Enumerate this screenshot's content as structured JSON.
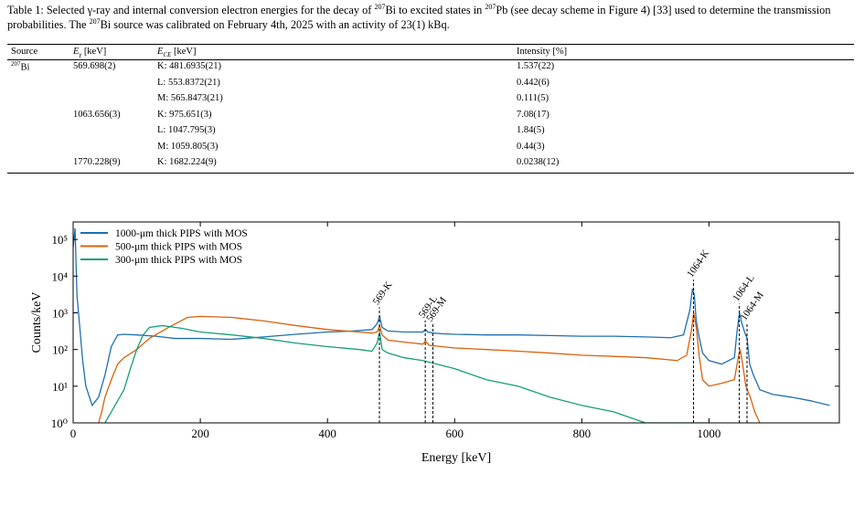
{
  "table": {
    "caption": [
      "Table 1: Selected γ-ray and internal conversion electron energies for the decay of ",
      "207",
      "Bi to excited states in ",
      "207",
      "Pb (see decay scheme in Figure 4) [33] used to determine the transmission probabilities. The ",
      "207",
      "Bi source was calibrated on February 4th, 2025 with an activity of 23(1) kBq."
    ],
    "header": [
      {
        "text": "Source"
      },
      {
        "text": "E",
        "sub": "γ",
        "unit": "[keV]"
      },
      {
        "text": "E",
        "sub": "CE",
        "unit": "[keV]"
      },
      {
        "text": "Intensity [%]"
      }
    ],
    "source": {
      "sup": "207",
      "text": "Bi"
    },
    "rows": [
      [
        null,
        "569.698(2)",
        "K: 481.6935(21)",
        "1.537(22)"
      ],
      [
        null,
        null,
        "L: 553.8372(21)",
        "0.442(6)"
      ],
      [
        null,
        null,
        "M: 565.8473(21)",
        "0.111(5)"
      ],
      [
        null,
        "1063.656(3)",
        "K: 975.651(3)",
        "7.08(17)"
      ],
      [
        null,
        null,
        "L: 1047.795(3)",
        "1.84(5)"
      ],
      [
        null,
        null,
        "M: 1059.805(3)",
        "0.44(3)"
      ],
      [
        null,
        "1770.228(9)",
        "K: 1682.224(9)",
        "0.0238(12)"
      ]
    ]
  },
  "chart_data": {
    "type": "line",
    "xlabel": "Energy [keV]",
    "ylabel": "Counts/keV",
    "xlim": [
      0,
      1205
    ],
    "ylim": [
      1,
      300000
    ],
    "log_y": true,
    "xticks": [
      0,
      200,
      400,
      600,
      800,
      1000
    ],
    "yticks": [
      {
        "value": 1,
        "label": "10⁰"
      },
      {
        "value": 10,
        "label": "10¹"
      },
      {
        "value": 100,
        "label": "10²"
      },
      {
        "value": 1000,
        "label": "10³"
      },
      {
        "value": 10000,
        "label": "10⁴"
      },
      {
        "value": 100000,
        "label": "10⁵"
      }
    ],
    "legend": "upper left",
    "series": [
      {
        "name": "1000-μm thick PIPS with MOS",
        "color": "#1f6fb2",
        "x": [
          0,
          3,
          6,
          10,
          15,
          20,
          30,
          40,
          50,
          60,
          70,
          80,
          100,
          130,
          160,
          200,
          250,
          300,
          350,
          400,
          440,
          470,
          478,
          482,
          486,
          495,
          520,
          550,
          554,
          558,
          566,
          580,
          600,
          650,
          700,
          750,
          800,
          850,
          900,
          940,
          960,
          970,
          974,
          977,
          980,
          985,
          990,
          1000,
          1020,
          1040,
          1044,
          1048,
          1052,
          1056,
          1060,
          1064,
          1070,
          1080,
          1100,
          1130,
          1160,
          1190
        ],
        "values": [
          60000,
          200000,
          3000,
          500,
          50,
          10,
          3,
          5,
          20,
          120,
          250,
          260,
          250,
          230,
          200,
          200,
          190,
          220,
          260,
          300,
          320,
          350,
          500,
          800,
          400,
          320,
          300,
          300,
          350,
          300,
          280,
          270,
          260,
          250,
          250,
          240,
          230,
          230,
          220,
          210,
          250,
          1200,
          4500,
          3000,
          600,
          200,
          80,
          50,
          40,
          60,
          300,
          1000,
          500,
          300,
          200,
          40,
          20,
          8,
          6,
          5,
          4,
          3
        ]
      },
      {
        "name": "500-μm thick PIPS with MOS",
        "color": "#d9620c",
        "x": [
          40,
          45,
          50,
          60,
          70,
          80,
          100,
          120,
          150,
          180,
          200,
          250,
          300,
          350,
          400,
          450,
          470,
          478,
          482,
          486,
          495,
          520,
          550,
          554,
          560,
          600,
          650,
          700,
          750,
          800,
          850,
          900,
          950,
          965,
          972,
          976,
          980,
          985,
          990,
          1000,
          1020,
          1040,
          1046,
          1049,
          1053,
          1058,
          1065,
          1072,
          1080
        ],
        "values": [
          1,
          2,
          5,
          15,
          40,
          60,
          100,
          200,
          400,
          750,
          800,
          750,
          600,
          450,
          350,
          300,
          280,
          300,
          450,
          250,
          180,
          160,
          140,
          170,
          130,
          110,
          100,
          90,
          80,
          70,
          65,
          60,
          50,
          70,
          300,
          1000,
          400,
          60,
          15,
          10,
          12,
          15,
          60,
          100,
          40,
          10,
          5,
          2,
          1
        ]
      },
      {
        "name": "300-μm thick PIPS with MOS",
        "color": "#169e7a",
        "x": [
          50,
          60,
          70,
          80,
          90,
          100,
          110,
          120,
          140,
          170,
          200,
          250,
          300,
          350,
          400,
          450,
          470,
          478,
          482,
          486,
          495,
          520,
          550,
          600,
          650,
          700,
          750,
          800,
          850,
          900,
          950,
          1000
        ],
        "values": [
          1,
          2,
          4,
          8,
          30,
          100,
          250,
          400,
          450,
          380,
          300,
          250,
          200,
          150,
          120,
          100,
          90,
          150,
          300,
          100,
          80,
          60,
          50,
          30,
          15,
          10,
          5,
          3,
          2,
          1,
          1,
          1
        ]
      }
    ],
    "annotations": [
      {
        "x": 481.7,
        "label": "569-K"
      },
      {
        "x": 553.8,
        "label": "569-L"
      },
      {
        "x": 565.8,
        "label": "569-M"
      },
      {
        "x": 975.7,
        "label": "1064-K"
      },
      {
        "x": 1047.8,
        "label": "1064-L"
      },
      {
        "x": 1059.8,
        "label": "1064-M"
      }
    ]
  }
}
